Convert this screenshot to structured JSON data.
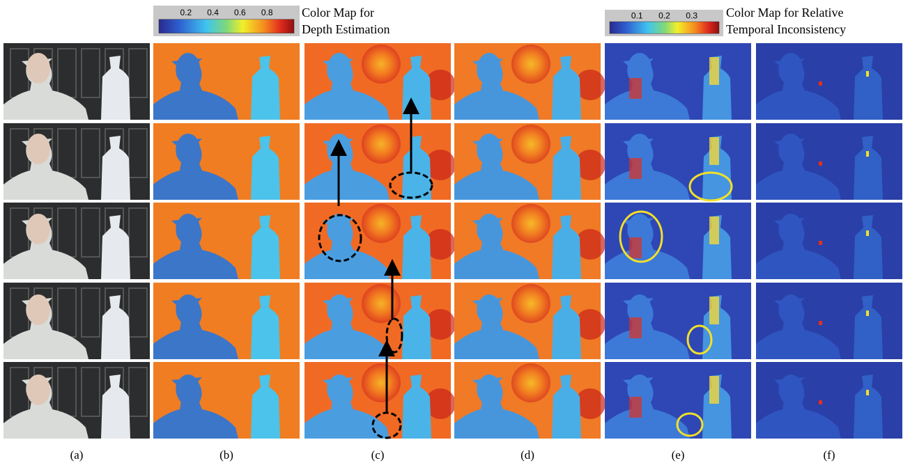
{
  "colorbars": [
    {
      "ticks": [
        0.2,
        0.4,
        0.6,
        0.8
      ],
      "caption": [
        "Color Map for",
        "Depth Estimation"
      ]
    },
    {
      "ticks": [
        0.1,
        0.2,
        0.3
      ],
      "caption": [
        "Color Map for Relative",
        "Temporal Inconsistency"
      ]
    }
  ],
  "panel_labels": [
    "(a)",
    "(b)",
    "(c)",
    "(d)",
    "(e)",
    "(f)"
  ]
}
